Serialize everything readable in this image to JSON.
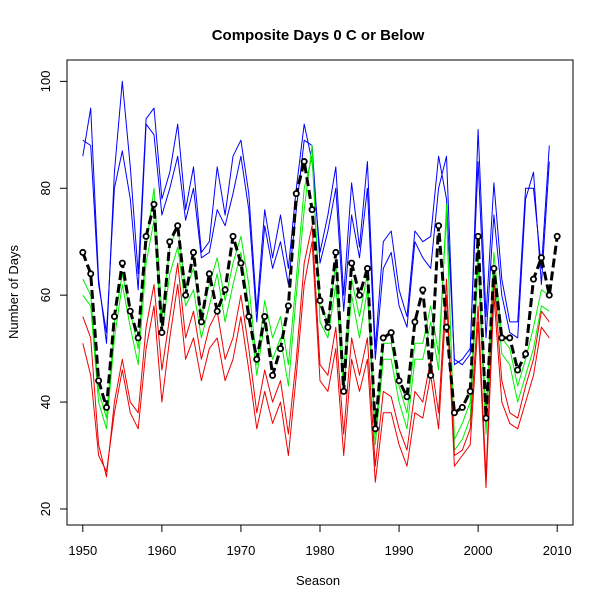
{
  "chart_data": {
    "type": "line",
    "title": "Composite Days 0 C or Below",
    "xlabel": "Season",
    "ylabel": "Number of Days",
    "xlim": [
      1948,
      2012
    ],
    "ylim": [
      17,
      104
    ],
    "xticks": [
      1950,
      1960,
      1970,
      1980,
      1990,
      2000,
      2010
    ],
    "yticks": [
      20,
      40,
      60,
      80,
      100
    ],
    "grid": false,
    "legend": "none",
    "x_start": 1950,
    "x_step": 1,
    "series": [
      {
        "color": "#0000ff",
        "style": "solid",
        "width": 1,
        "values": [
          86,
          95,
          63,
          51,
          83,
          100,
          84,
          64,
          93,
          95,
          78,
          83,
          92,
          76,
          84,
          68,
          70,
          84,
          75,
          86,
          89,
          79,
          57,
          76,
          67,
          75,
          65,
          80,
          92,
          85,
          68,
          75,
          84,
          60,
          81,
          69,
          85,
          50,
          70,
          72,
          61,
          56,
          72,
          70,
          71,
          86,
          78,
          48,
          47,
          49,
          91,
          56,
          81,
          63,
          55,
          55,
          80,
          80,
          65,
          88,
          null
        ],
        "note": "upper blue envelope"
      },
      {
        "color": "#0000ff",
        "style": "solid",
        "width": 1,
        "values": [
          89,
          88,
          62,
          53,
          80,
          87,
          78,
          61,
          92,
          90,
          75,
          80,
          86,
          74,
          80,
          67,
          68,
          76,
          73,
          79,
          86,
          76,
          55,
          73,
          65,
          70,
          62,
          76,
          89,
          88,
          66,
          72,
          80,
          57,
          75,
          67,
          80,
          48,
          65,
          68,
          58,
          54,
          70,
          67,
          65,
          80,
          86,
          47,
          48,
          50,
          85,
          52,
          75,
          60,
          53,
          52,
          78,
          83,
          62,
          85,
          null
        ],
        "note": "second blue envelope"
      },
      {
        "color": "#00ee00",
        "style": "solid",
        "width": 1,
        "values": [
          60,
          58,
          40,
          35,
          52,
          62,
          54,
          47,
          66,
          74,
          53,
          64,
          69,
          58,
          61,
          52,
          58,
          64,
          55,
          62,
          68,
          58,
          45,
          55,
          48,
          52,
          43,
          60,
          76,
          88,
          55,
          52,
          62,
          42,
          60,
          52,
          61,
          32,
          48,
          48,
          40,
          35,
          48,
          48,
          55,
          46,
          77,
          31,
          33,
          37,
          66,
          34,
          65,
          49,
          47,
          40,
          45,
          50,
          58,
          57,
          null
        ],
        "note": "upper green"
      },
      {
        "color": "#00ee00",
        "style": "solid",
        "width": 1,
        "values": [
          63,
          60,
          42,
          37,
          55,
          64,
          57,
          50,
          69,
          80,
          56,
          69,
          73,
          61,
          65,
          56,
          62,
          67,
          59,
          66,
          71,
          62,
          47,
          59,
          52,
          56,
          47,
          63,
          80,
          86,
          58,
          55,
          66,
          46,
          63,
          56,
          64,
          34,
          51,
          51,
          43,
          38,
          51,
          51,
          58,
          49,
          75,
          33,
          36,
          40,
          69,
          37,
          68,
          52,
          50,
          43,
          48,
          54,
          61,
          60,
          null
        ],
        "note": "second green"
      },
      {
        "color": "#ee0000",
        "style": "solid",
        "width": 1,
        "values": [
          51,
          45,
          30,
          27,
          38,
          46,
          38,
          35,
          50,
          58,
          40,
          52,
          62,
          48,
          52,
          44,
          50,
          52,
          44,
          48,
          56,
          46,
          35,
          42,
          36,
          40,
          30,
          45,
          62,
          70,
          44,
          42,
          50,
          30,
          48,
          42,
          48,
          25,
          38,
          38,
          32,
          28,
          38,
          37,
          45,
          35,
          60,
          28,
          30,
          32,
          55,
          24,
          60,
          40,
          36,
          35,
          40,
          45,
          54,
          52,
          null
        ],
        "note": "lower red"
      },
      {
        "color": "#ee0000",
        "style": "solid",
        "width": 1,
        "values": [
          56,
          52,
          32,
          26,
          40,
          48,
          40,
          38,
          54,
          62,
          46,
          56,
          66,
          52,
          57,
          48,
          54,
          57,
          48,
          52,
          60,
          50,
          38,
          46,
          40,
          44,
          34,
          48,
          66,
          73,
          47,
          45,
          54,
          34,
          52,
          45,
          52,
          28,
          42,
          41,
          35,
          31,
          42,
          40,
          48,
          38,
          63,
          30,
          31,
          35,
          58,
          26,
          63,
          44,
          38,
          37,
          43,
          48,
          57,
          55,
          null
        ],
        "note": "second red"
      },
      {
        "color": "#000000",
        "style": "dashed",
        "width": 3,
        "values": [
          68,
          64,
          44,
          39,
          56,
          66,
          57,
          52,
          71,
          77,
          53,
          70,
          73,
          60,
          68,
          55,
          64,
          57,
          61,
          71,
          66,
          56,
          48,
          56,
          45,
          50,
          58,
          79,
          85,
          76,
          59,
          54,
          68,
          42,
          66,
          60,
          65,
          35,
          52,
          53,
          44,
          41,
          55,
          61,
          45,
          73,
          54,
          38,
          39,
          42,
          71,
          37,
          65,
          52,
          52,
          46,
          49,
          63,
          67,
          60,
          71
        ],
        "note": "composite mean with open circle markers"
      }
    ],
    "markers": {
      "series_index": 6,
      "shape": "circle",
      "fill": "#ffffff",
      "stroke": "#000000"
    }
  }
}
